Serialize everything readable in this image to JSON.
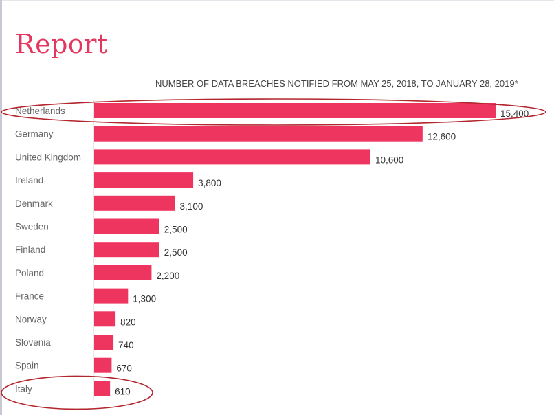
{
  "report_title": "Report",
  "chart_data": {
    "type": "bar",
    "orientation": "horizontal",
    "title": "NUMBER OF DATA BREACHES NOTIFIED FROM MAY 25, 2018, TO JANUARY 28, 2019*",
    "categories": [
      "Netherlands",
      "Germany",
      "United Kingdom",
      "Ireland",
      "Denmark",
      "Sweden",
      "Finland",
      "Poland",
      "France",
      "Norway",
      "Slovenia",
      "Spain",
      "Italy"
    ],
    "values": [
      15400,
      12600,
      10600,
      3800,
      3100,
      2500,
      2500,
      2200,
      1300,
      820,
      740,
      670,
      610
    ],
    "value_labels": [
      "15,400",
      "12,600",
      "10,600",
      "3,800",
      "3,100",
      "2,500",
      "2,500",
      "2,200",
      "1,300",
      "820",
      "740",
      "670",
      "610"
    ],
    "xlim": [
      0,
      15400
    ],
    "highlighted": [
      "Netherlands",
      "Italy"
    ],
    "grid": false
  },
  "colors": {
    "bar": "#ee3560",
    "title": "#e3375f",
    "highlight_ellipse": "#b3262d",
    "axis": "#d0d0d0"
  }
}
